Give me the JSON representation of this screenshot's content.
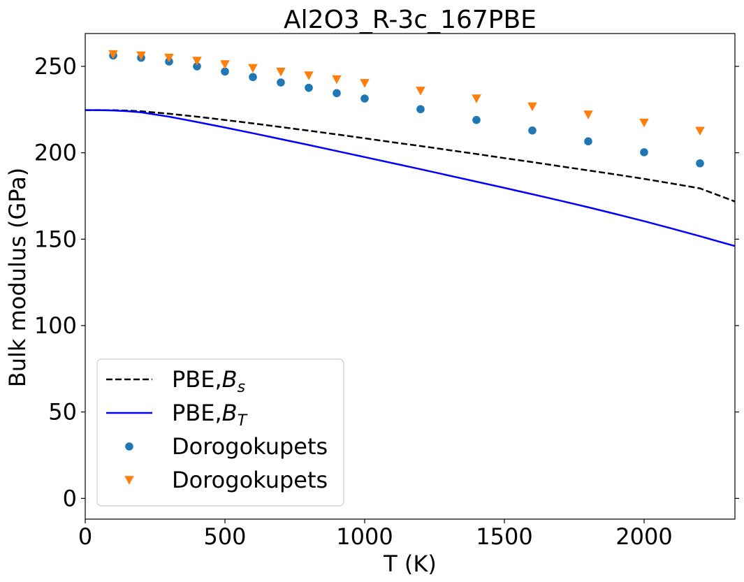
{
  "chart_data": {
    "type": "line",
    "title": "Al2O3_R-3c_167PBE",
    "xlabel": "T (K)",
    "ylabel": "Bulk modulus (GPa)",
    "xlim": [
      0,
      2325
    ],
    "ylim": [
      -12,
      269
    ],
    "xticks": [
      0,
      500,
      1000,
      1500,
      2000
    ],
    "yticks": [
      0,
      50,
      100,
      150,
      200,
      250
    ],
    "grid": false,
    "legend_position": "lower-left",
    "series": [
      {
        "name": "PBE,",
        "name_math": "B",
        "name_sub": "s",
        "kind": "line",
        "style": "dashed",
        "color": "#000000",
        "x": [
          0,
          50,
          100,
          150,
          200,
          300,
          400,
          500,
          600,
          700,
          800,
          900,
          1000,
          1100,
          1200,
          1300,
          1400,
          1500,
          1600,
          1700,
          1800,
          1900,
          2000,
          2100,
          2200,
          2325
        ],
        "y": [
          224.7,
          224.7,
          224.6,
          224.4,
          224.0,
          222.6,
          220.9,
          219.0,
          217.0,
          214.9,
          212.8,
          210.6,
          208.4,
          206.1,
          203.9,
          201.6,
          199.3,
          196.9,
          194.6,
          192.2,
          189.8,
          187.4,
          184.9,
          182.2,
          179.4,
          171.8
        ]
      },
      {
        "name": "PBE,",
        "name_math": "B",
        "name_sub": "T",
        "kind": "line",
        "style": "solid",
        "color": "#0000ff",
        "x": [
          0,
          50,
          100,
          150,
          200,
          300,
          400,
          500,
          600,
          700,
          800,
          900,
          1000,
          1100,
          1200,
          1300,
          1400,
          1500,
          1600,
          1700,
          1800,
          1900,
          2000,
          2100,
          2200,
          2325
        ],
        "y": [
          224.7,
          224.7,
          224.5,
          224.1,
          223.4,
          220.9,
          217.8,
          214.6,
          211.3,
          207.9,
          204.5,
          201.0,
          197.5,
          194.0,
          190.5,
          186.9,
          183.3,
          179.7,
          176.0,
          172.3,
          168.5,
          164.5,
          160.4,
          156.1,
          151.7,
          146.0
        ]
      },
      {
        "name": "Dorogokupets",
        "kind": "scatter",
        "marker": "circle",
        "color": "#1f77b4",
        "x": [
          100,
          200,
          300,
          400,
          500,
          600,
          700,
          800,
          900,
          1000,
          1200,
          1400,
          1600,
          1800,
          2000,
          2200
        ],
        "y": [
          256.3,
          255.0,
          252.8,
          250.0,
          247.0,
          243.8,
          240.7,
          237.6,
          234.5,
          231.4,
          225.2,
          219.0,
          212.9,
          206.6,
          200.3,
          193.9
        ]
      },
      {
        "name": "Dorogokupets",
        "kind": "scatter",
        "marker": "triangle-down",
        "color": "#ff7f0e",
        "x": [
          100,
          200,
          300,
          400,
          500,
          600,
          700,
          800,
          900,
          1000,
          1200,
          1400,
          1600,
          1800,
          2000,
          2200
        ],
        "y": [
          257.0,
          256.3,
          255.0,
          253.2,
          251.2,
          249.0,
          246.9,
          244.7,
          242.5,
          240.3,
          235.9,
          231.4,
          226.8,
          222.1,
          217.4,
          212.7
        ]
      }
    ]
  }
}
